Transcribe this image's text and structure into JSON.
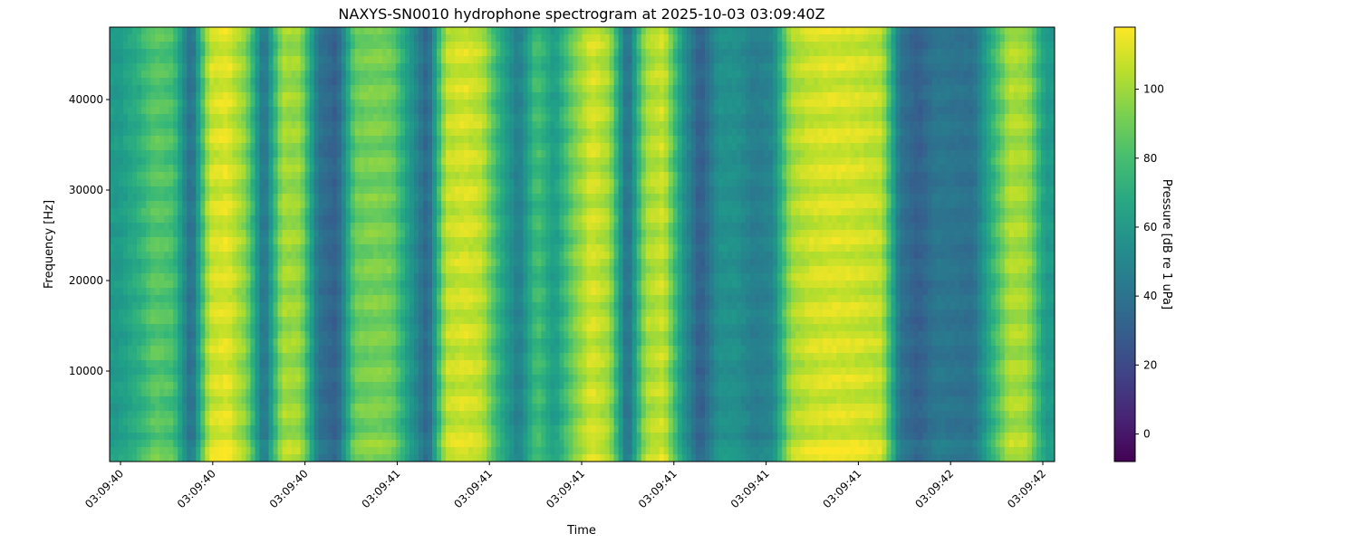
{
  "chart_data": {
    "type": "heatmap",
    "title": "NAXYS-SN0010 hydrophone spectrogram at 2025-10-03 03:09:40Z",
    "xlabel": "Time",
    "ylabel": "Frequency [Hz]",
    "x_tick_labels": [
      "03:09:40",
      "03:09:40",
      "03:09:40",
      "03:09:41",
      "03:09:41",
      "03:09:41",
      "03:09:41",
      "03:09:41",
      "03:09:41",
      "03:09:42",
      "03:09:42"
    ],
    "y_ticks": [
      10000,
      20000,
      30000,
      40000
    ],
    "ylim": [
      0,
      48000
    ],
    "colorbar": {
      "label": "Pressure [dB re 1 uPa]",
      "ticks": [
        0,
        20,
        40,
        60,
        80,
        100
      ],
      "range": [
        -8,
        118
      ],
      "colormap": "viridis"
    },
    "column_levels_db": [
      60,
      70,
      85,
      80,
      35,
      108,
      112,
      95,
      38,
      100,
      98,
      40,
      30,
      88,
      92,
      90,
      60,
      32,
      105,
      110,
      105,
      70,
      45,
      80,
      60,
      90,
      110,
      100,
      35,
      100,
      108,
      60,
      28,
      55,
      55,
      45,
      50,
      100,
      108,
      110,
      110,
      108,
      105,
      40,
      30,
      42,
      40,
      38,
      70,
      102,
      100,
      60
    ],
    "grid": false
  }
}
